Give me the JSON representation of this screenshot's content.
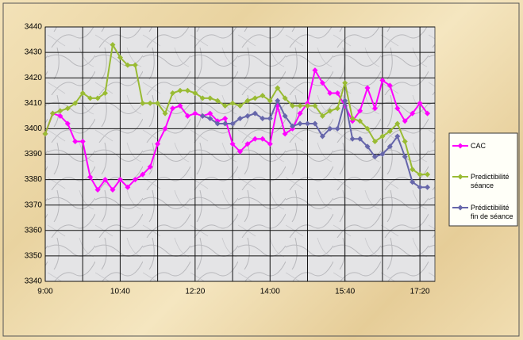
{
  "chart_data": {
    "type": "line",
    "x": [
      540,
      550,
      560,
      570,
      580,
      590,
      600,
      610,
      620,
      630,
      640,
      650,
      660,
      670,
      680,
      690,
      700,
      710,
      720,
      730,
      740,
      750,
      760,
      770,
      780,
      790,
      800,
      810,
      820,
      830,
      840,
      850,
      860,
      870,
      880,
      890,
      900,
      910,
      920,
      930,
      940,
      950,
      960,
      970,
      980,
      990,
      1000,
      1010,
      1020,
      1030,
      1040,
      1050
    ],
    "xlim": [
      540,
      1060
    ],
    "xticks": [
      {
        "value": 540,
        "label": "9:00"
      },
      {
        "value": 640,
        "label": "10:40"
      },
      {
        "value": 740,
        "label": "12:20"
      },
      {
        "value": 840,
        "label": "14:00"
      },
      {
        "value": 940,
        "label": "15:40"
      },
      {
        "value": 1040,
        "label": "17:20"
      }
    ],
    "xminorticks": [
      590,
      690,
      790,
      890,
      990
    ],
    "ylim": [
      3340,
      3440
    ],
    "yticks": [
      3340,
      3350,
      3360,
      3370,
      3380,
      3390,
      3400,
      3410,
      3420,
      3430,
      3440
    ],
    "grid": true,
    "legend": "right",
    "series": [
      {
        "name": "CAC",
        "color": "#ff00ff",
        "values": [
          3398,
          3406,
          3405,
          3402,
          3395,
          3395,
          3381,
          3376,
          3380,
          3376,
          3380,
          3377,
          3380,
          3382,
          3385,
          3394,
          3400,
          3408,
          3409,
          3405,
          3406,
          3405,
          3406,
          3403,
          3404,
          3394,
          3391,
          3394,
          3396,
          3396,
          3394,
          3409,
          3398,
          3400,
          3406,
          3410,
          3423,
          3418,
          3414,
          3414,
          3409,
          3403,
          3407,
          3416,
          3408,
          3419,
          3417,
          3408,
          3403,
          3406,
          3410,
          3406
        ]
      },
      {
        "name": "Predictibilité séance",
        "color": "#99bb33",
        "values": [
          3398,
          3406,
          3407,
          3408,
          3410,
          3414,
          3412,
          3412,
          3414,
          3433,
          3428,
          3425,
          3425,
          3410,
          3410,
          3410,
          3406,
          3414,
          3415,
          3415,
          3414,
          3412,
          3412,
          3411,
          3409,
          3410,
          3409,
          3411,
          3412,
          3413,
          3411,
          3416,
          3412,
          3409,
          3409,
          3409,
          3409,
          3405,
          3407,
          3408,
          3418,
          3404,
          3403,
          3400,
          3395,
          3397,
          3399,
          3402,
          3395,
          3384,
          3382,
          3382
        ]
      },
      {
        "name": "Prédictibilité fin de séance",
        "color": "#6666aa",
        "values": [
          null,
          null,
          null,
          null,
          null,
          null,
          null,
          null,
          null,
          null,
          null,
          null,
          null,
          null,
          null,
          null,
          null,
          null,
          null,
          null,
          null,
          3405,
          3404,
          3402,
          3402,
          3402,
          3404,
          3405,
          3406,
          3404,
          3404,
          3411,
          3405,
          3401,
          3402,
          3402,
          3402,
          3397,
          3400,
          3400,
          3411,
          3396,
          3396,
          3393,
          3389,
          3390,
          3393,
          3397,
          3389,
          3379,
          3377,
          3377
        ]
      }
    ]
  }
}
